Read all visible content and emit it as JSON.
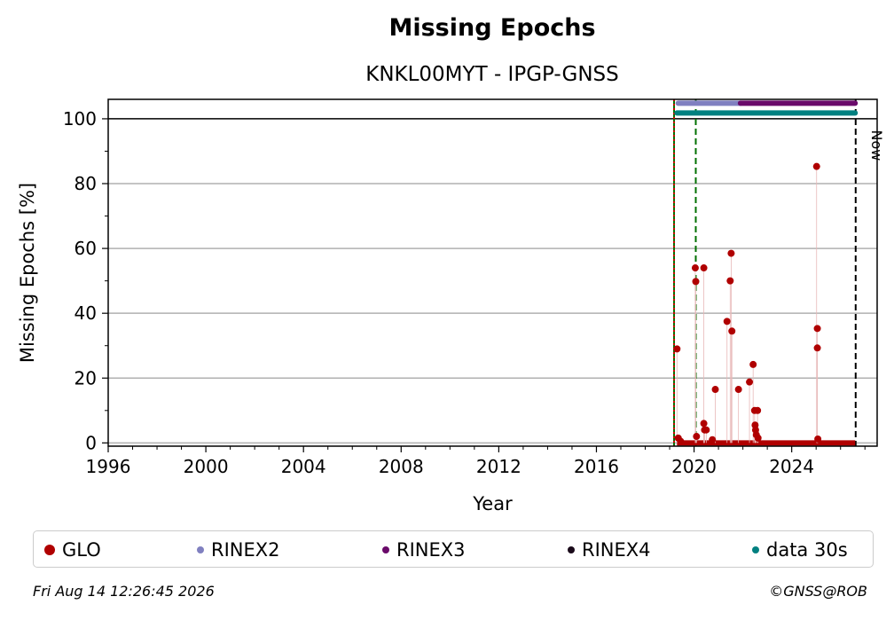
{
  "chart_data": {
    "type": "scatter",
    "title": "Missing Epochs",
    "subtitle": "KNKL00MYT - IPGP-GNSS",
    "xlabel": "Year",
    "ylabel": "Missing Epochs [%]",
    "xlim": [
      1996,
      2027.5
    ],
    "ylim": [
      -1,
      106
    ],
    "x_ticks": [
      1996,
      2000,
      2004,
      2008,
      2012,
      2016,
      2020,
      2024
    ],
    "y_ticks": [
      0,
      20,
      40,
      60,
      80,
      100
    ],
    "grid": "horizontal",
    "legend_position": "bottom",
    "now_label": "Now",
    "now_x": 2026.62,
    "vlines": [
      {
        "x": 2019.18,
        "color": "#007000",
        "style": "solid"
      },
      {
        "x": 2019.18,
        "color": "#cc0000",
        "style": "dotted"
      },
      {
        "x": 2020.07,
        "color": "#007000",
        "style": "dashed"
      },
      {
        "x": 2026.62,
        "color": "#000000",
        "style": "dashed"
      }
    ],
    "series": [
      {
        "name": "GLO",
        "color": "#b00000",
        "points": [
          [
            2019.3,
            29.0
          ],
          [
            2019.35,
            1.5
          ],
          [
            2019.45,
            0.5
          ],
          [
            2020.05,
            54.0
          ],
          [
            2020.07,
            49.8
          ],
          [
            2020.1,
            2.0
          ],
          [
            2020.4,
            54.0
          ],
          [
            2020.4,
            6.0
          ],
          [
            2020.43,
            4.0
          ],
          [
            2020.5,
            4.0
          ],
          [
            2020.75,
            1.0
          ],
          [
            2020.87,
            16.5
          ],
          [
            2021.35,
            37.5
          ],
          [
            2021.48,
            50.0
          ],
          [
            2021.52,
            58.5
          ],
          [
            2021.55,
            34.5
          ],
          [
            2021.82,
            16.5
          ],
          [
            2022.27,
            18.8
          ],
          [
            2022.42,
            24.2
          ],
          [
            2022.48,
            10.0
          ],
          [
            2022.5,
            5.5
          ],
          [
            2022.52,
            4.0
          ],
          [
            2022.55,
            2.5
          ],
          [
            2022.6,
            10.0
          ],
          [
            2022.62,
            1.5
          ],
          [
            2025.02,
            85.3
          ],
          [
            2025.05,
            35.3
          ],
          [
            2025.05,
            29.3
          ],
          [
            2025.07,
            1.2
          ]
        ],
        "baseline": {
          "from": 2019.3,
          "to": 2026.6,
          "y": 0
        }
      },
      {
        "name": "RINEX2",
        "color": "#8080c0",
        "band": {
          "from": 2019.35,
          "to": 2021.9,
          "y": 104.8
        }
      },
      {
        "name": "RINEX3",
        "color": "#6a0a6a",
        "band": {
          "from": 2021.9,
          "to": 2026.6,
          "y": 104.8
        }
      },
      {
        "name": "RINEX4",
        "color": "#1a0a1a",
        "band": null
      },
      {
        "name": "data 30s",
        "color": "#008080",
        "band": {
          "from": 2019.3,
          "to": 2026.6,
          "y": 101.8
        }
      }
    ]
  },
  "footer": {
    "timestamp": "Fri Aug 14 12:26:45 2026",
    "copyright": "©GNSS@ROB"
  }
}
